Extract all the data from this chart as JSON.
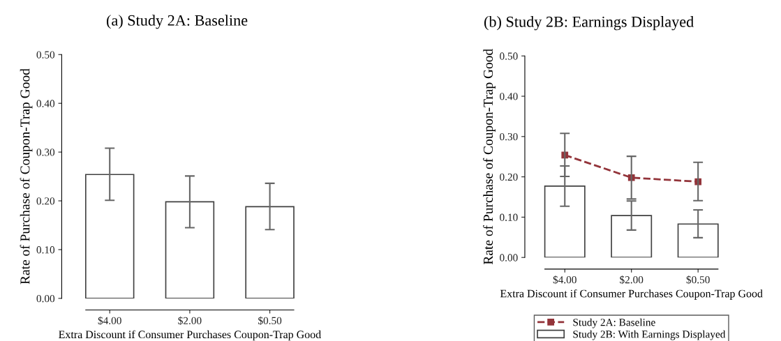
{
  "chart_data": [
    {
      "type": "bar",
      "title": "(a) Study 2A: Baseline",
      "xlabel": "Extra Discount if Consumer Purchases Coupon-Trap Good",
      "ylabel": "Rate of Purchase of Coupon-Trap Good",
      "categories": [
        "$4.00",
        "$2.00",
        "$0.50"
      ],
      "ylim": [
        0,
        0.5
      ],
      "yticks": [
        {
          "value": 0,
          "label": "0.00"
        },
        {
          "value": 0.1,
          "label": "0.10"
        },
        {
          "value": 0.2,
          "label": "0.20"
        },
        {
          "value": 0.3,
          "label": "0.30"
        },
        {
          "value": 0.4,
          "label": "0.40"
        },
        {
          "value": 0.5,
          "label": "0.50"
        }
      ],
      "grid": false,
      "legend": false,
      "series": [
        {
          "color": "#ffffff",
          "values": [
            0.254,
            0.198,
            0.188
          ],
          "errors": [
            [
              0.201,
              0.308
            ],
            [
              0.145,
              0.251
            ],
            [
              0.141,
              0.236
            ]
          ]
        }
      ]
    },
    {
      "type": "bar",
      "title": "(b) Study 2B: Earnings Displayed",
      "xlabel": "Extra Discount if Consumer Purchases Coupon-Trap Good",
      "ylabel": "Rate of Purchase of Coupon-Trap Good",
      "categories": [
        "$4.00",
        "$2.00",
        "$0.50"
      ],
      "ylim": [
        0,
        0.5
      ],
      "yticks": [
        {
          "value": 0,
          "label": "0.00"
        },
        {
          "value": 0.1,
          "label": "0.10"
        },
        {
          "value": 0.2,
          "label": "0.20"
        },
        {
          "value": 0.3,
          "label": "0.30"
        },
        {
          "value": 0.4,
          "label": "0.40"
        },
        {
          "value": 0.5,
          "label": "0.50"
        }
      ],
      "grid": false,
      "legend": "bottom",
      "series": [
        {
          "type": "line",
          "name": "Study 2A: Baseline",
          "color": "#93343a",
          "marker": "square",
          "line_style": "dashed",
          "values": [
            0.254,
            0.198,
            0.188
          ],
          "errors": [
            [
              0.201,
              0.308
            ],
            [
              0.145,
              0.251
            ],
            [
              0.141,
              0.236
            ]
          ]
        },
        {
          "name": "Study 2B: With Earnings Displayed",
          "color": "#ffffff",
          "values": [
            0.177,
            0.104,
            0.083
          ],
          "errors": [
            [
              0.127,
              0.227
            ],
            [
              0.068,
              0.14
            ],
            [
              0.049,
              0.118
            ]
          ]
        }
      ]
    }
  ]
}
